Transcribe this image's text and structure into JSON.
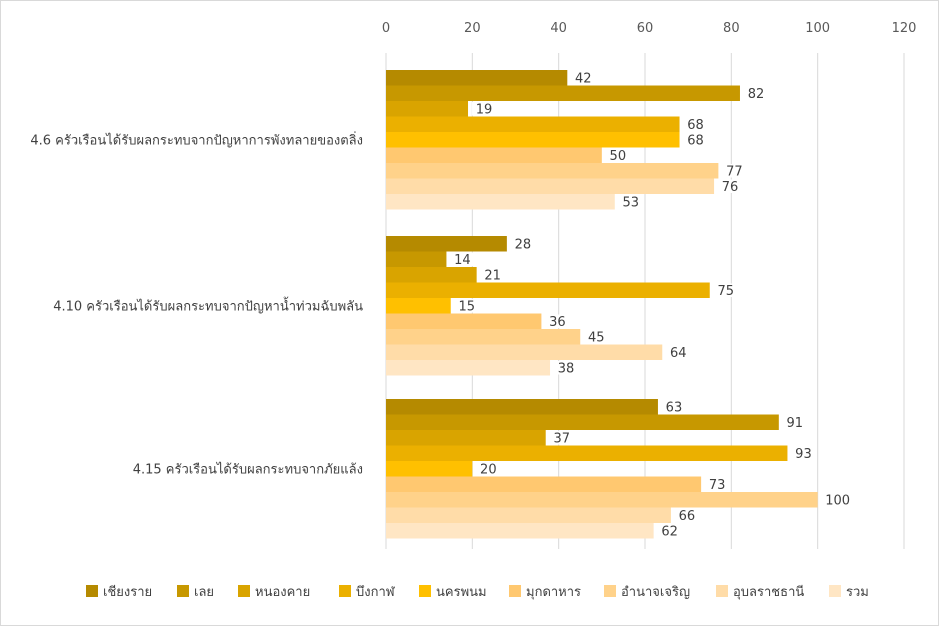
{
  "chart_data": {
    "type": "bar",
    "orientation": "horizontal",
    "title": "",
    "xlabel": "",
    "ylabel": "",
    "xlim": [
      0,
      120
    ],
    "x_ticks": [
      0,
      20,
      40,
      60,
      80,
      100,
      120
    ],
    "grid": true,
    "legend_position": "bottom",
    "data_labels": true,
    "categories": [
      "4.6 ครัวเรือนได้รับผลกระทบจากปัญหาการพังทลายของตลิ่ง",
      "4.10 ครัวเรือนได้รับผลกระทบจากปัญหาน้ำท่วมฉับพลัน",
      "4.15 ครัวเรือนได้รับผลกระทบจากภัยแล้ง"
    ],
    "series": [
      {
        "name": "เชียงราย",
        "color": "#b58a00",
        "values": [
          42,
          28,
          63
        ]
      },
      {
        "name": "เลย",
        "color": "#c79800",
        "values": [
          82,
          14,
          91
        ]
      },
      {
        "name": "หนองคาย",
        "color": "#d9a400",
        "values": [
          19,
          21,
          37
        ]
      },
      {
        "name": "บึงกาฬ",
        "color": "#ebb000",
        "values": [
          68,
          75,
          93
        ]
      },
      {
        "name": "นครพนม",
        "color": "#ffc000",
        "values": [
          68,
          15,
          20
        ]
      },
      {
        "name": "มุกดาหาร",
        "color": "#ffc870",
        "values": [
          50,
          36,
          73
        ]
      },
      {
        "name": "อำนาจเจริญ",
        "color": "#ffd28a",
        "values": [
          77,
          45,
          100
        ]
      },
      {
        "name": "อุบลราชธานี",
        "color": "#ffdca8",
        "values": [
          76,
          64,
          66
        ]
      },
      {
        "name": "รวม",
        "color": "#ffe6c4",
        "values": [
          53,
          38,
          62
        ]
      }
    ]
  }
}
